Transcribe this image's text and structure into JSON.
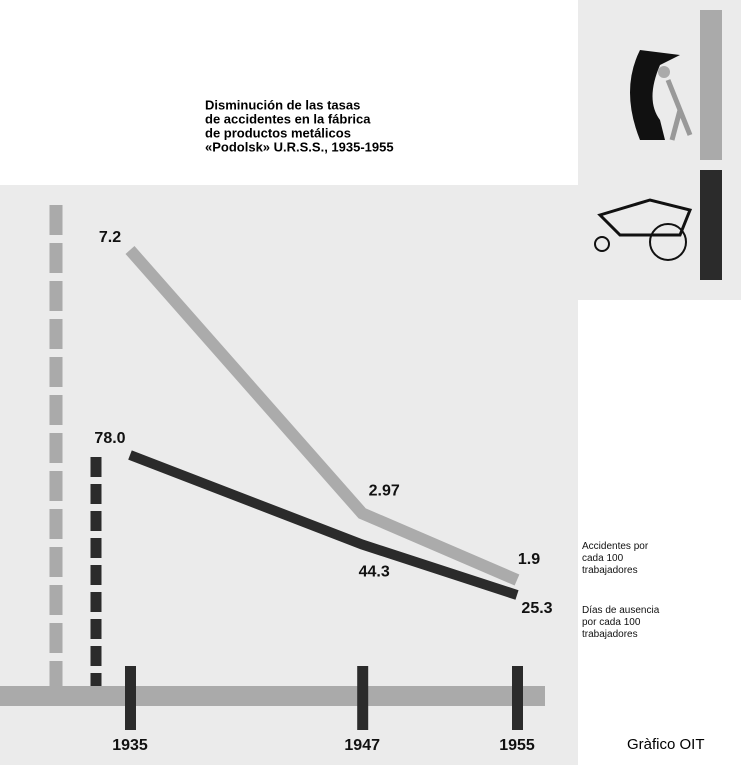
{
  "chart_data": {
    "type": "line",
    "title": [
      "Disminución de las tasas",
      "de accidentes en la fábrica",
      "de productos metálicos",
      "«Podolsk» U.R.S.S., 1935-1955"
    ],
    "x": [
      1935,
      1947,
      1955
    ],
    "series": [
      {
        "name": "Accidentes por cada 100 trabajadores",
        "color": "#ababab",
        "values": [
          7.2,
          2.97,
          1.9
        ]
      },
      {
        "name": "Días de ausencia por cada 100 trabajadores",
        "color": "#2b2b2b",
        "values": [
          78.0,
          44.3,
          25.3
        ],
        "value_labels": [
          "78.0",
          "44.3",
          "25.3"
        ],
        "axis": "y2"
      }
    ],
    "source": "Gràfico OIT"
  }
}
